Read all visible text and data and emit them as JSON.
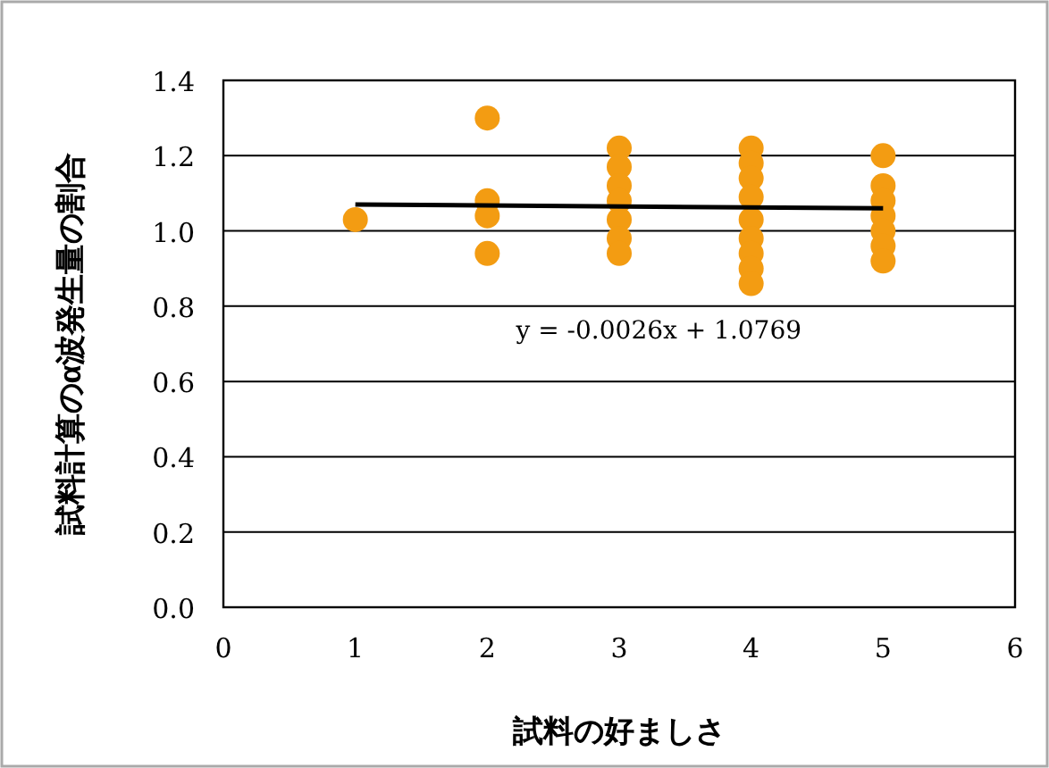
{
  "chart_data": {
    "type": "scatter",
    "xlabel": "試料の好ましさ",
    "ylabel": "試料計算のα波発生量の割合",
    "series": [
      {
        "color": "#f39c12",
        "marker": "circle",
        "x": [
          1,
          2,
          2,
          2,
          2,
          3,
          3,
          3,
          3,
          3,
          3,
          3,
          4,
          4,
          4,
          4,
          4,
          4,
          4,
          4,
          4,
          5,
          5,
          5,
          5,
          5,
          5,
          5
        ],
        "values": [
          1.03,
          1.3,
          1.08,
          1.04,
          0.94,
          1.22,
          1.17,
          1.12,
          1.08,
          1.03,
          0.98,
          0.94,
          1.22,
          1.18,
          1.14,
          1.09,
          1.03,
          0.98,
          0.94,
          0.9,
          0.86,
          1.2,
          1.12,
          1.08,
          1.04,
          1.0,
          0.96,
          0.92
        ]
      },
      {
        "type": "line",
        "color": "#000000",
        "marker": "none",
        "x": [
          1,
          5
        ],
        "values": [
          1.07,
          1.06
        ]
      }
    ],
    "annotations": [
      "y = -0.0026x + 1.0769"
    ],
    "xlim": [
      0,
      6
    ],
    "xticks": [
      0,
      1,
      2,
      3,
      4,
      5,
      6
    ],
    "ylim": [
      0,
      1.4
    ],
    "yticks": [
      {
        "value": 0,
        "label": "0.0"
      },
      {
        "value": 0.2,
        "label": "0.2"
      },
      {
        "value": 0.4,
        "label": "0.4"
      },
      {
        "value": 0.6,
        "label": "0.6"
      },
      {
        "value": 0.8,
        "label": "0.8"
      },
      {
        "value": 1,
        "label": "1.0"
      },
      {
        "value": 1.2,
        "label": "1.2"
      },
      {
        "value": 1.4,
        "label": "1.4"
      }
    ],
    "grid": "y"
  }
}
